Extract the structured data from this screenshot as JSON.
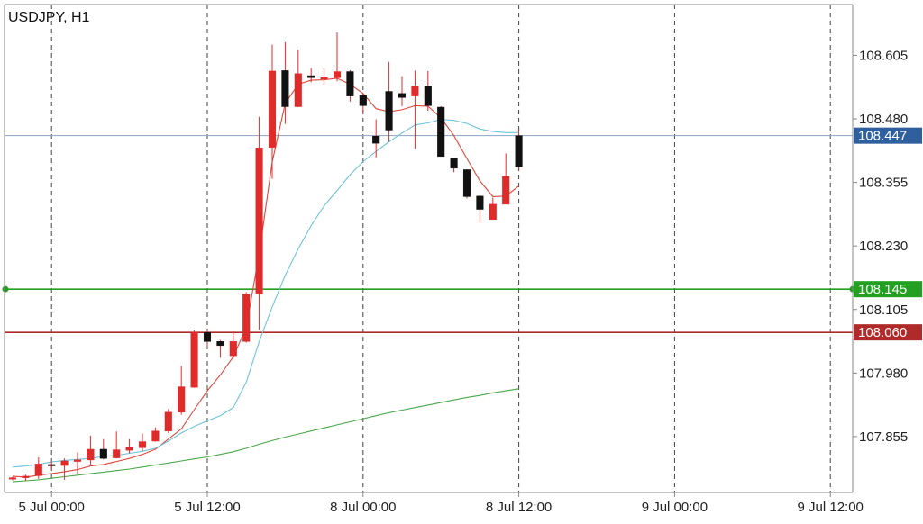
{
  "chart_data": {
    "type": "candlestick",
    "title": "USDJPY, H1",
    "symbol": "USDJPY",
    "timeframe": "H1",
    "ylim": [
      107.745,
      108.705
    ],
    "y_ticks": [
      "108.605",
      "108.480",
      "108.355",
      "108.230",
      "108.105",
      "107.980",
      "107.855"
    ],
    "x_ticks": [
      {
        "label": "5 Jul 00:00",
        "bar": 3
      },
      {
        "label": "5 Jul 12:00",
        "bar": 15
      },
      {
        "label": "8 Jul 00:00",
        "bar": 27
      },
      {
        "label": "8 Jul 12:00",
        "bar": 39
      },
      {
        "label": "9 Jul 00:00",
        "bar": 51
      },
      {
        "label": "9 Jul 12:00",
        "bar": 63
      }
    ],
    "candles": [
      {
        "o": 107.772,
        "h": 107.776,
        "l": 107.769,
        "c": 107.774
      },
      {
        "o": 107.774,
        "h": 107.78,
        "l": 107.768,
        "c": 107.777
      },
      {
        "o": 107.778,
        "h": 107.814,
        "l": 107.772,
        "c": 107.801
      },
      {
        "o": 107.8,
        "h": 107.806,
        "l": 107.79,
        "c": 107.798
      },
      {
        "o": 107.798,
        "h": 107.812,
        "l": 107.77,
        "c": 107.807
      },
      {
        "o": 107.806,
        "h": 107.824,
        "l": 107.782,
        "c": 107.809
      },
      {
        "o": 107.809,
        "h": 107.857,
        "l": 107.8,
        "c": 107.83
      },
      {
        "o": 107.83,
        "h": 107.85,
        "l": 107.81,
        "c": 107.812
      },
      {
        "o": 107.813,
        "h": 107.865,
        "l": 107.812,
        "c": 107.829
      },
      {
        "o": 107.828,
        "h": 107.85,
        "l": 107.822,
        "c": 107.834
      },
      {
        "o": 107.833,
        "h": 107.861,
        "l": 107.826,
        "c": 107.845
      },
      {
        "o": 107.846,
        "h": 107.873,
        "l": 107.845,
        "c": 107.866
      },
      {
        "o": 107.866,
        "h": 107.909,
        "l": 107.862,
        "c": 107.903
      },
      {
        "o": 107.903,
        "h": 107.994,
        "l": 107.898,
        "c": 107.953
      },
      {
        "o": 107.952,
        "h": 108.064,
        "l": 107.951,
        "c": 108.06
      },
      {
        "o": 108.06,
        "h": 108.065,
        "l": 108.031,
        "c": 108.042
      },
      {
        "o": 108.042,
        "h": 108.045,
        "l": 108.01,
        "c": 108.034
      },
      {
        "o": 108.014,
        "h": 108.062,
        "l": 108.01,
        "c": 108.042
      },
      {
        "o": 108.042,
        "h": 108.139,
        "l": 108.04,
        "c": 108.136
      },
      {
        "o": 108.137,
        "h": 108.484,
        "l": 108.065,
        "c": 108.423
      },
      {
        "o": 108.424,
        "h": 108.626,
        "l": 108.362,
        "c": 108.574
      },
      {
        "o": 108.575,
        "h": 108.631,
        "l": 108.47,
        "c": 108.504
      },
      {
        "o": 108.504,
        "h": 108.616,
        "l": 108.503,
        "c": 108.569
      },
      {
        "o": 108.565,
        "h": 108.58,
        "l": 108.552,
        "c": 108.561
      },
      {
        "o": 108.561,
        "h": 108.58,
        "l": 108.547,
        "c": 108.561
      },
      {
        "o": 108.561,
        "h": 108.65,
        "l": 108.554,
        "c": 108.573
      },
      {
        "o": 108.573,
        "h": 108.576,
        "l": 108.514,
        "c": 108.525
      },
      {
        "o": 108.526,
        "h": 108.529,
        "l": 108.492,
        "c": 108.506
      },
      {
        "o": 108.446,
        "h": 108.479,
        "l": 108.404,
        "c": 108.432
      },
      {
        "o": 108.534,
        "h": 108.592,
        "l": 108.435,
        "c": 108.458
      },
      {
        "o": 108.53,
        "h": 108.564,
        "l": 108.505,
        "c": 108.522
      },
      {
        "o": 108.525,
        "h": 108.575,
        "l": 108.421,
        "c": 108.544
      },
      {
        "o": 108.545,
        "h": 108.574,
        "l": 108.496,
        "c": 108.506
      },
      {
        "o": 108.503,
        "h": 108.505,
        "l": 108.409,
        "c": 108.406
      },
      {
        "o": 108.402,
        "h": 108.395,
        "l": 108.375,
        "c": 108.383
      },
      {
        "o": 108.38,
        "h": 108.381,
        "l": 108.323,
        "c": 108.327
      },
      {
        "o": 108.328,
        "h": 108.33,
        "l": 108.275,
        "c": 108.302
      },
      {
        "o": 108.282,
        "h": 108.325,
        "l": 108.283,
        "c": 108.312
      },
      {
        "o": 108.312,
        "h": 108.412,
        "l": 108.312,
        "c": 108.367
      },
      {
        "o": 108.447,
        "h": 108.461,
        "l": 108.378,
        "c": 108.386
      }
    ],
    "series": [
      {
        "color": "#e0463a",
        "values": [
          107.777,
          107.775,
          107.779,
          107.782,
          107.786,
          107.79,
          107.797,
          107.8,
          107.806,
          107.812,
          107.82,
          107.83,
          107.85,
          107.87,
          107.908,
          107.945,
          107.976,
          108.012,
          108.07,
          108.215,
          108.395,
          108.51,
          108.548,
          108.556,
          108.557,
          108.56,
          108.548,
          108.53,
          108.5,
          108.494,
          108.498,
          108.506,
          108.505,
          108.482,
          108.447,
          108.402,
          108.358,
          108.327,
          108.328,
          108.348
        ]
      },
      {
        "color": "#6fc3d9",
        "values": [
          107.795,
          107.797,
          107.8,
          107.805,
          107.808,
          107.81,
          107.812,
          107.816,
          107.818,
          107.822,
          107.826,
          107.832,
          107.846,
          107.862,
          107.875,
          107.886,
          107.896,
          107.912,
          107.962,
          108.042,
          108.11,
          108.172,
          108.224,
          108.27,
          108.309,
          108.339,
          108.37,
          108.396,
          108.416,
          108.435,
          108.452,
          108.468,
          108.472,
          108.479,
          108.477,
          108.471,
          108.46,
          108.455,
          108.453,
          108.453
        ]
      },
      {
        "color": "#49a84a",
        "values": [
          107.766,
          107.768,
          107.77,
          107.773,
          107.776,
          107.779,
          107.782,
          107.785,
          107.788,
          107.791,
          107.795,
          107.799,
          107.803,
          107.807,
          107.811,
          107.815,
          107.82,
          107.825,
          107.832,
          107.84,
          107.847,
          107.854,
          107.86,
          107.866,
          107.872,
          107.878,
          107.884,
          107.89,
          107.896,
          107.902,
          107.907,
          107.912,
          107.917,
          107.922,
          107.927,
          107.932,
          107.936,
          107.941,
          107.945,
          107.949
        ]
      }
    ],
    "hlines": [
      {
        "value": 108.447,
        "label": "108.447",
        "color": "#8aa4c2",
        "label_bg": "#2f5f9c",
        "width": 1
      },
      {
        "value": 108.145,
        "label": "108.145",
        "color": "#23a021",
        "label_bg": "#23a021",
        "width": 1.6,
        "handles": true
      },
      {
        "value": 108.06,
        "label": "108.060",
        "color": "#b02a2a",
        "label_bg": "#b02a2a",
        "width": 1.6
      }
    ],
    "colors": {
      "bull": "#e02b2b",
      "bear": "#111111",
      "grid": "#444444",
      "axis": "#888888"
    },
    "grid": "vertical-dashed"
  }
}
